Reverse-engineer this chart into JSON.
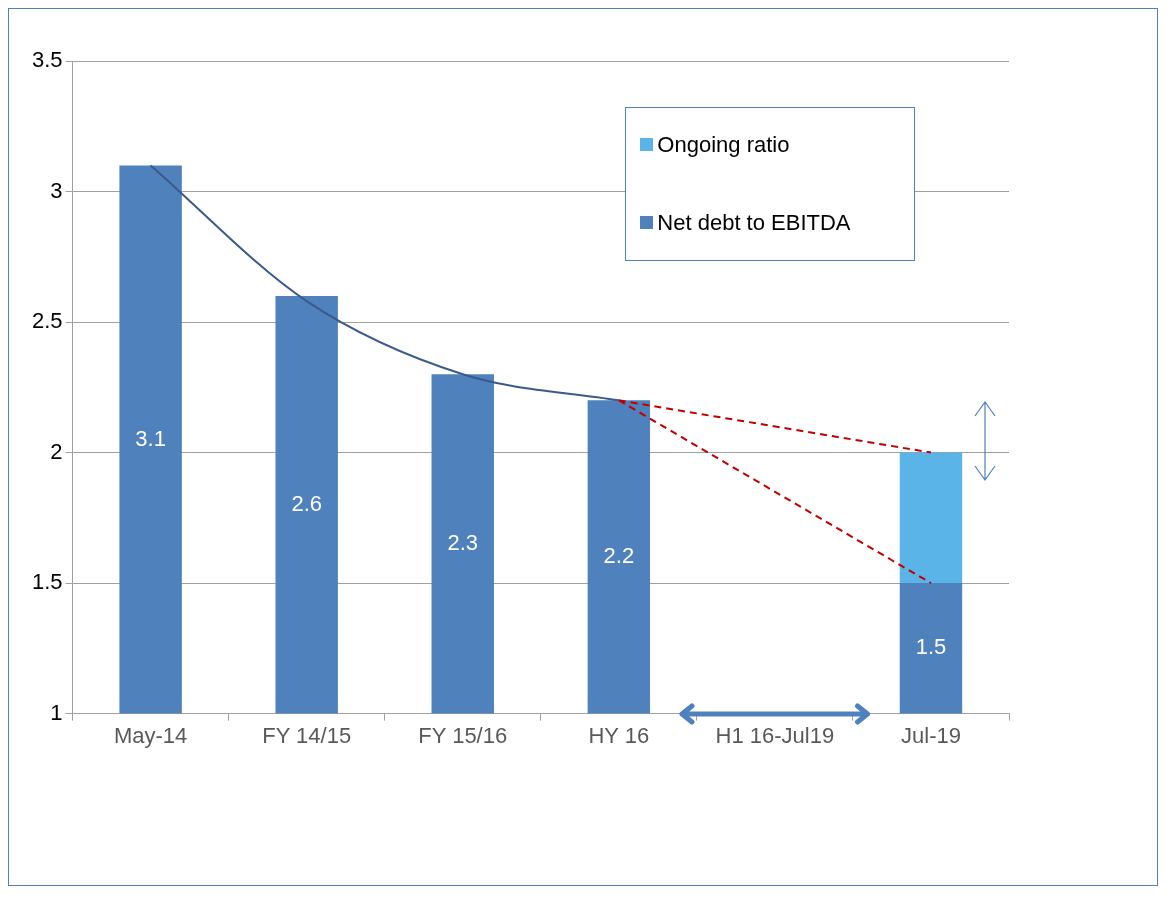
{
  "chart_data": {
    "type": "bar",
    "categories": [
      "May-14",
      "FY 14/15",
      "FY 15/16",
      "HY 16",
      "H1 16-Jul19",
      "Jul-19"
    ],
    "series": [
      {
        "name": "Net debt to EBITDA",
        "color": "#4f81bd",
        "values": [
          3.1,
          2.6,
          2.3,
          2.2,
          null,
          1.5
        ],
        "value_labels": [
          "3.1",
          "2.6",
          "2.3",
          "2.2",
          null,
          "1.5"
        ]
      },
      {
        "name": "Ongoing ratio",
        "color": "#5ab4e8",
        "values": [
          null,
          null,
          null,
          null,
          null,
          0.5
        ],
        "base": [
          null,
          null,
          null,
          null,
          null,
          1.5
        ]
      },
      {
        "type": "line",
        "color": "#3a5a8c",
        "values": [
          3.1,
          2.58,
          2.3,
          2.2,
          null,
          null
        ]
      },
      {
        "type": "line",
        "color": "#c00000",
        "line_style": "dashed",
        "values": [
          null,
          null,
          null,
          2.2,
          null,
          2.0
        ]
      },
      {
        "type": "line",
        "color": "#c00000",
        "line_style": "dashed",
        "values": [
          null,
          null,
          null,
          2.2,
          null,
          1.5
        ]
      }
    ],
    "ylim": [
      1,
      3.5
    ],
    "yticks": [
      1,
      1.5,
      2,
      2.5,
      3,
      3.5
    ],
    "grid": "y",
    "legend": "top right"
  }
}
